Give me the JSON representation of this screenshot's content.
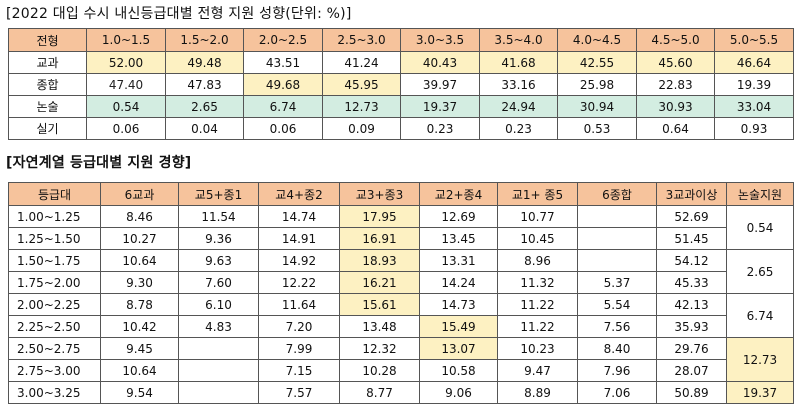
{
  "title1": "[2022 대입 수시 내신등급대별 전형 지원 성향(단위: %)]",
  "title2": "[자연계열 등급대별 지원 경향]",
  "colors": {
    "header": "#f6c39c",
    "highlight_yellow": "#fdf1c2",
    "highlight_green": "#d3ede1"
  },
  "table1": {
    "header": [
      "전형",
      "1.0~1.5",
      "1.5~2.0",
      "2.0~2.5",
      "2.5~3.0",
      "3.0~3.5",
      "3.5~4.0",
      "4.0~4.5",
      "4.5~5.0",
      "5.0~5.5"
    ],
    "rows": [
      {
        "label": "교과",
        "values": [
          "52.00",
          "49.48",
          "43.51",
          "41.24",
          "40.43",
          "41.68",
          "42.55",
          "45.60",
          "46.64"
        ]
      },
      {
        "label": "종합",
        "values": [
          "47.40",
          "47.83",
          "49.68",
          "45.95",
          "39.97",
          "33.16",
          "25.98",
          "22.83",
          "19.39"
        ]
      },
      {
        "label": "논술",
        "values": [
          "0.54",
          "2.65",
          "6.74",
          "12.73",
          "19.37",
          "24.94",
          "30.94",
          "30.93",
          "33.04"
        ]
      },
      {
        "label": "실기",
        "values": [
          "0.06",
          "0.04",
          "0.06",
          "0.09",
          "0.23",
          "0.23",
          "0.53",
          "0.64",
          "0.93"
        ]
      }
    ]
  },
  "table2": {
    "header": [
      "등급대",
      "6교과",
      "교5+종1",
      "교4+종2",
      "교3+종3",
      "교2+종4",
      "교1+ 종5",
      "6종합",
      "3교과이상",
      "논술지원"
    ],
    "rows": [
      {
        "label": "1.00~1.25",
        "values": [
          "8.46",
          "11.54",
          "14.74",
          "17.95",
          "12.69",
          "10.77",
          "",
          "52.69"
        ]
      },
      {
        "label": "1.25~1.50",
        "values": [
          "10.27",
          "9.36",
          "14.91",
          "16.91",
          "13.45",
          "10.45",
          "",
          "51.45"
        ]
      },
      {
        "label": "1.50~1.75",
        "values": [
          "10.64",
          "9.63",
          "14.92",
          "18.93",
          "13.31",
          "8.96",
          "",
          "54.12"
        ]
      },
      {
        "label": "1.75~2.00",
        "values": [
          "9.30",
          "7.60",
          "12.22",
          "16.21",
          "14.24",
          "11.32",
          "5.37",
          "45.33"
        ]
      },
      {
        "label": "2.00~2.25",
        "values": [
          "8.78",
          "6.10",
          "11.64",
          "15.61",
          "14.73",
          "11.22",
          "5.54",
          "42.13"
        ]
      },
      {
        "label": "2.25~2.50",
        "values": [
          "10.42",
          "4.83",
          "7.20",
          "13.48",
          "15.49",
          "11.22",
          "7.56",
          "35.93"
        ]
      },
      {
        "label": "2.50~2.75",
        "values": [
          "9.45",
          "",
          "7.99",
          "12.32",
          "13.07",
          "10.23",
          "8.40",
          "29.76"
        ]
      },
      {
        "label": "2.75~3.00",
        "values": [
          "10.64",
          "",
          "7.15",
          "10.28",
          "10.58",
          "9.47",
          "7.96",
          "28.07"
        ]
      },
      {
        "label": "3.00~3.25",
        "values": [
          "9.54",
          "",
          "7.57",
          "8.77",
          "9.06",
          "8.89",
          "7.06",
          "50.89"
        ]
      }
    ],
    "essay": [
      "0.54",
      "2.65",
      "6.74",
      "12.73",
      "19.37"
    ]
  }
}
